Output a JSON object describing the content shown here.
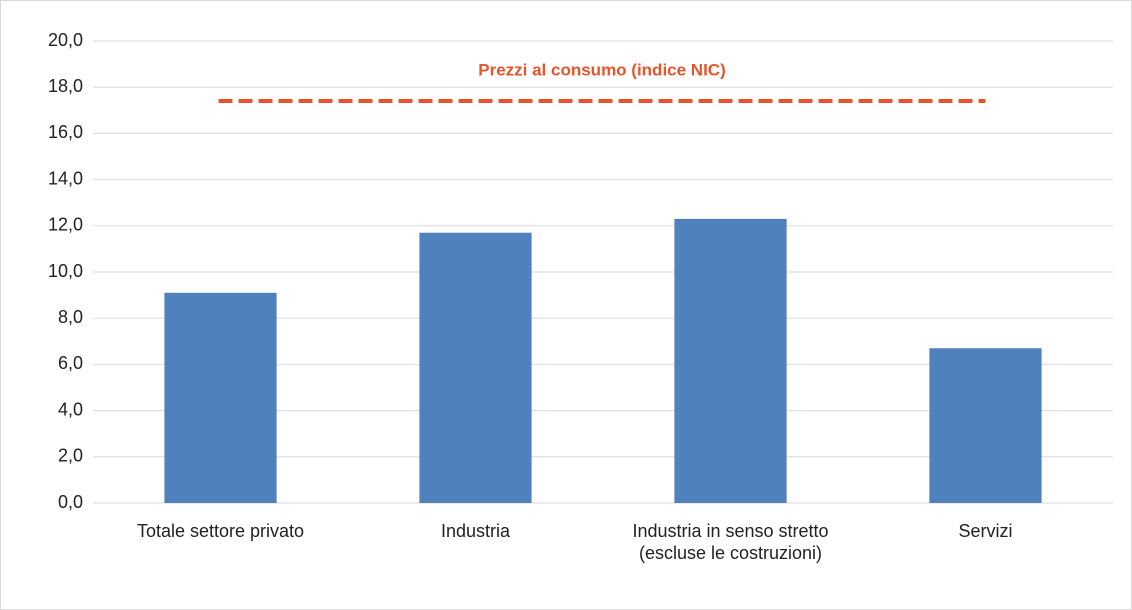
{
  "chart_data": {
    "type": "bar",
    "categories": [
      "Totale settore privato",
      "Industria",
      "Industria in senso stretto (escluse le costruzioni)",
      "Servizi"
    ],
    "values": [
      9.1,
      11.7,
      12.3,
      6.7
    ],
    "color": "#4f81bd",
    "ylim": [
      0,
      20
    ],
    "yticks": [
      {
        "value": 0,
        "label": "0,0"
      },
      {
        "value": 2,
        "label": "2,0"
      },
      {
        "value": 4,
        "label": "4,0"
      },
      {
        "value": 6,
        "label": "6,0"
      },
      {
        "value": 8,
        "label": "8,0"
      },
      {
        "value": 10,
        "label": "10,0"
      },
      {
        "value": 12,
        "label": "12,0"
      },
      {
        "value": 14,
        "label": "14,0"
      },
      {
        "value": 16,
        "label": "16,0"
      },
      {
        "value": 18,
        "label": "18,0"
      },
      {
        "value": 20,
        "label": "20,0"
      }
    ],
    "grid": true,
    "reference_line": {
      "value": 17.4,
      "label": "Prezzi al consumo (indice NIC)",
      "color": "#e8542a"
    }
  }
}
